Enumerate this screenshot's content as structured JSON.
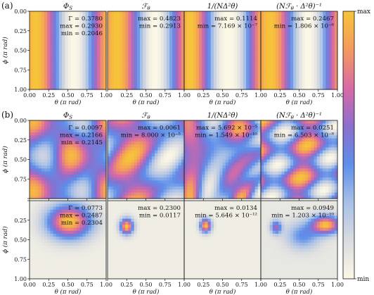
{
  "figure": {
    "colorbar": {
      "max_label": "max",
      "min_label": "min",
      "stops": [
        "#fcf8e6",
        "#d9dbe0",
        "#a8c0e6",
        "#5d8eea",
        "#8c6fcc",
        "#d86aa6",
        "#f39a5d",
        "#f7c43a"
      ]
    }
  },
  "chart_data": [
    {
      "type": "heatmap",
      "panel": "a",
      "panel_label": "(a)",
      "row": 0,
      "col": 0,
      "title": "Φ_S",
      "xlabel": "θ (π rad)",
      "ylabel": "ϕ (π rad)",
      "xlim": [
        0,
        1
      ],
      "ylim": [
        1,
        0
      ],
      "xticks": [
        "0.00",
        "0.25",
        "0.50",
        "0.75",
        "1.00"
      ],
      "yticks": [
        "0.00",
        "0.25",
        "0.50",
        "0.75",
        "1.00"
      ],
      "pattern": "theta-bands",
      "annotation": [
        "Γ = 0.3780",
        "max = 0.2930",
        "min = 0.2046"
      ]
    },
    {
      "type": "heatmap",
      "panel": "a",
      "row": 0,
      "col": 1,
      "title": "ℱ_θ",
      "xlabel": "θ (π rad)",
      "xlim": [
        0,
        1
      ],
      "ylim": [
        1,
        0
      ],
      "xticks": [
        "0.25",
        "0.50",
        "0.75",
        "1.00"
      ],
      "pattern": "theta-bands",
      "annotation": [
        "max = 0.4823",
        "min = 0.2913"
      ]
    },
    {
      "type": "heatmap",
      "panel": "a",
      "row": 0,
      "col": 2,
      "title": "1/(NΔ²θ)",
      "xlabel": "θ (π rad)",
      "xlim": [
        0,
        1
      ],
      "ylim": [
        1,
        0
      ],
      "xticks": [
        "0.25",
        "0.50",
        "0.75",
        "1.00"
      ],
      "pattern": "theta-bands",
      "annotation": [
        "max = 0.1114",
        "min = 7.169 × 10⁻⁷"
      ]
    },
    {
      "type": "heatmap",
      "panel": "a",
      "row": 0,
      "col": 3,
      "title": "(Nℱ_θ · Δ²θ)⁻¹",
      "xlabel": "θ (π rad)",
      "xlim": [
        0,
        1
      ],
      "ylim": [
        1,
        0
      ],
      "xticks": [
        "0.25",
        "0.50",
        "0.75",
        "1.00"
      ],
      "pattern": "theta-bands",
      "annotation": [
        "max = 0.2467",
        "min = 1.806 × 10⁻⁶"
      ]
    },
    {
      "type": "heatmap",
      "panel": "b",
      "panel_label": "(b)",
      "row": 1,
      "col": 0,
      "title": "Φ_S",
      "ylabel": "ϕ (π rad)",
      "xlim": [
        0,
        1
      ],
      "ylim": [
        1,
        0
      ],
      "yticks": [
        "0.00",
        "0.25",
        "0.50",
        "0.75"
      ],
      "pattern": "mixed-waves",
      "annotation": [
        "Γ = 0.0097",
        "max = 0.2166",
        "min = 0.2145"
      ]
    },
    {
      "type": "heatmap",
      "panel": "b",
      "row": 1,
      "col": 1,
      "title": "ℱ_θ",
      "xlim": [
        0,
        1
      ],
      "ylim": [
        1,
        0
      ],
      "pattern": "mixed-waves",
      "annotation": [
        "max = 0.0061",
        "min = 8.000 × 10⁻⁵"
      ]
    },
    {
      "type": "heatmap",
      "panel": "b",
      "row": 1,
      "col": 2,
      "title": "1/(NΔ²θ)",
      "xlim": [
        0,
        1
      ],
      "ylim": [
        1,
        0
      ],
      "pattern": "mixed-waves",
      "annotation": [
        "max = 5.692 × 10⁻⁵",
        "min = 1.549 × 10⁻¹⁰"
      ]
    },
    {
      "type": "heatmap",
      "panel": "b",
      "row": 1,
      "col": 3,
      "title": "(Nℱ_θ · Δ²θ)⁻¹",
      "xlim": [
        0,
        1
      ],
      "ylim": [
        1,
        0
      ],
      "pattern": "mixed-waves",
      "annotation": [
        "max = 0.0251",
        "min = 6.503 × 10⁻⁸"
      ]
    },
    {
      "type": "heatmap",
      "panel": "b",
      "row": 2,
      "col": 0,
      "xlabel": "θ (π rad)",
      "ylabel": "ϕ (π rad)",
      "xlim": [
        0,
        1
      ],
      "ylim": [
        1,
        0
      ],
      "xticks": [
        "0.00",
        "0.25",
        "0.50",
        "0.75",
        "1.00"
      ],
      "yticks": [
        "0.25",
        "0.50",
        "0.75",
        "1.00"
      ],
      "pattern": "blob",
      "annotation": [
        "Γ = 0.0773",
        "max = 0.2487",
        "min = 0.2304"
      ]
    },
    {
      "type": "heatmap",
      "panel": "b",
      "row": 2,
      "col": 1,
      "xlabel": "θ (π rad)",
      "xlim": [
        0,
        1
      ],
      "ylim": [
        1,
        0
      ],
      "xticks": [
        "0.25",
        "0.50",
        "0.75",
        "1.00"
      ],
      "pattern": "blob",
      "annotation": [
        "max = 0.2300",
        "min = 0.0117"
      ]
    },
    {
      "type": "heatmap",
      "panel": "b",
      "row": 2,
      "col": 2,
      "xlabel": "θ (π rad)",
      "xlim": [
        0,
        1
      ],
      "ylim": [
        1,
        0
      ],
      "xticks": [
        "0.25",
        "0.50",
        "0.75",
        "1.00"
      ],
      "pattern": "blob",
      "annotation": [
        "max = 0.0134",
        "min = 5.646 × 10⁻¹²"
      ]
    },
    {
      "type": "heatmap",
      "panel": "b",
      "row": 2,
      "col": 3,
      "xlabel": "θ (π rad)",
      "xlim": [
        0,
        1
      ],
      "ylim": [
        1,
        0
      ],
      "xticks": [
        "0.25",
        "0.50",
        "0.75",
        "1.00"
      ],
      "pattern": "blob",
      "annotation": [
        "max = 0.0949",
        "min = 1.203 × 10⁻¹⁰"
      ]
    }
  ]
}
